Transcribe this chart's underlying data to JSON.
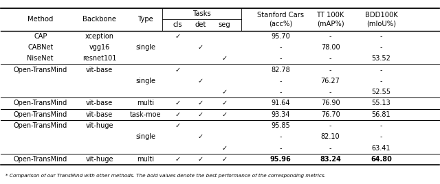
{
  "fig_width": 6.4,
  "fig_height": 2.68,
  "dpi": 100,
  "footnote": "* Comparison of our TransMind with other methods. The bold values denote the best performance of the corresponding metrics.",
  "rows": [
    {
      "method": "CAP",
      "backbone": "xception",
      "type": "",
      "cls": true,
      "det": false,
      "seg": false,
      "stanford": "95.70",
      "tt100k": "-",
      "bdd100k": "-",
      "bold": false
    },
    {
      "method": "CABNet",
      "backbone": "vgg16",
      "type": "single",
      "cls": false,
      "det": true,
      "seg": false,
      "stanford": "-",
      "tt100k": "78.00",
      "bdd100k": "-",
      "bold": false
    },
    {
      "method": "NiseNet",
      "backbone": "resnet101",
      "type": "",
      "cls": false,
      "det": false,
      "seg": true,
      "stanford": "-",
      "tt100k": "-",
      "bdd100k": "53.52",
      "bold": false
    },
    {
      "method": "Open-TransMind",
      "backbone": "vit-base",
      "type": "",
      "cls": true,
      "det": false,
      "seg": false,
      "stanford": "82.78",
      "tt100k": "-",
      "bdd100k": "-",
      "bold": false
    },
    {
      "method": "",
      "backbone": "",
      "type": "single",
      "cls": false,
      "det": true,
      "seg": false,
      "stanford": "-",
      "tt100k": "76.27",
      "bdd100k": "-",
      "bold": false
    },
    {
      "method": "",
      "backbone": "",
      "type": "",
      "cls": false,
      "det": false,
      "seg": true,
      "stanford": "-",
      "tt100k": "-",
      "bdd100k": "52.55",
      "bold": false
    },
    {
      "method": "Open-TransMind",
      "backbone": "vit-base",
      "type": "multi",
      "cls": true,
      "det": true,
      "seg": true,
      "stanford": "91.64",
      "tt100k": "76.90",
      "bdd100k": "55.13",
      "bold": false
    },
    {
      "method": "Open-TransMind",
      "backbone": "vit-base",
      "type": "task-moe",
      "cls": true,
      "det": true,
      "seg": true,
      "stanford": "93.34",
      "tt100k": "76.70",
      "bdd100k": "56.81",
      "bold": false
    },
    {
      "method": "Open-TransMind",
      "backbone": "vit-huge",
      "type": "",
      "cls": true,
      "det": false,
      "seg": false,
      "stanford": "95.85",
      "tt100k": "-",
      "bdd100k": "-",
      "bold": false
    },
    {
      "method": "",
      "backbone": "",
      "type": "single",
      "cls": false,
      "det": true,
      "seg": false,
      "stanford": "-",
      "tt100k": "82.10",
      "bdd100k": "-",
      "bold": false
    },
    {
      "method": "",
      "backbone": "",
      "type": "",
      "cls": false,
      "det": false,
      "seg": true,
      "stanford": "-",
      "tt100k": "-",
      "bdd100k": "63.41",
      "bold": false
    },
    {
      "method": "Open-TransMind",
      "backbone": "vit-huge",
      "type": "multi",
      "cls": true,
      "det": true,
      "seg": true,
      "stanford": "95.96",
      "tt100k": "83.24",
      "bdd100k": "64.80",
      "bold": true
    }
  ],
  "group_separators": [
    3,
    6,
    7,
    8,
    11
  ],
  "background_color": "#ffffff",
  "font_size": 7.0,
  "header_font_size": 7.2
}
